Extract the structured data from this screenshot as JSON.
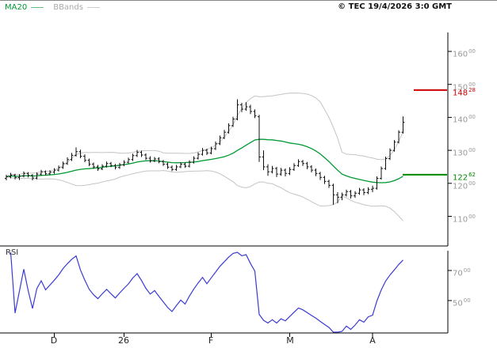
{
  "header": {
    "legend": [
      {
        "label": "MA20",
        "color": "#009933"
      },
      {
        "label": "BBands",
        "color": "#bbbbbb"
      }
    ],
    "copyright": "© TEC 19/4/2026 3:0 GMT"
  },
  "colors": {
    "ma20": "#009933",
    "bbands": "#c4c4c4",
    "candle": "#111111",
    "rsi_line": "#3b3bd1",
    "resistance": "#cc0000",
    "support": "#008800",
    "axis": "#000000",
    "tick_label": "#999999"
  },
  "chart_data": {
    "type": "candlestick",
    "title": "",
    "indicators": [
      "MA20",
      "BBands",
      "RSI"
    ],
    "price_axis": {
      "side": "right",
      "range_visible": [
        101,
        166
      ],
      "ticks": [
        {
          "value": 160,
          "main": "160",
          "sup": "00"
        },
        {
          "value": 150,
          "main": "150",
          "sup": "00"
        },
        {
          "value": 140,
          "main": "140",
          "sup": "00"
        },
        {
          "value": 130,
          "main": "130",
          "sup": "00"
        },
        {
          "value": 120,
          "main": "120",
          "sup": "00"
        },
        {
          "value": 110,
          "main": "110",
          "sup": "00"
        }
      ]
    },
    "levels": [
      {
        "name": "resistance",
        "value": 148.28,
        "main": "148",
        "sup": "28",
        "color": "#cc0000"
      },
      {
        "name": "support",
        "value": 122.62,
        "main": "122",
        "sup": "62",
        "color": "#008800"
      }
    ],
    "x_ticks": [
      {
        "label": "D",
        "index": 11
      },
      {
        "label": "26",
        "index": 27
      },
      {
        "label": "F",
        "index": 47
      },
      {
        "label": "M",
        "index": 65
      },
      {
        "label": "A",
        "index": 84
      }
    ],
    "style": {
      "ma_color": "#009933",
      "bbands_color": "#c4c4c4",
      "candle_color": "#111111",
      "rsi_color": "#3b3bd1"
    },
    "candles": [
      [
        121.5,
        122.6,
        120.9,
        122.0
      ],
      [
        122.0,
        123.2,
        121.5,
        122.5
      ],
      [
        122.5,
        122.9,
        121.2,
        121.8
      ],
      [
        121.8,
        122.8,
        121.0,
        122.2
      ],
      [
        122.2,
        123.6,
        121.8,
        123.0
      ],
      [
        123.0,
        123.4,
        121.8,
        122.4
      ],
      [
        122.4,
        122.8,
        120.9,
        121.6
      ],
      [
        121.6,
        123.3,
        121.2,
        122.8
      ],
      [
        122.8,
        124.1,
        122.3,
        123.5
      ],
      [
        123.5,
        123.9,
        122.4,
        122.9
      ],
      [
        122.9,
        124.0,
        122.5,
        123.4
      ],
      [
        123.4,
        124.6,
        122.9,
        124.0
      ],
      [
        124.0,
        125.4,
        123.6,
        124.8
      ],
      [
        124.8,
        126.6,
        124.4,
        126.0
      ],
      [
        126.0,
        127.9,
        125.6,
        127.2
      ],
      [
        127.2,
        129.2,
        126.8,
        128.5
      ],
      [
        128.5,
        130.9,
        128.1,
        129.6
      ],
      [
        129.6,
        130.2,
        127.6,
        128.2
      ],
      [
        128.2,
        128.8,
        126.4,
        127.0
      ],
      [
        127.0,
        127.5,
        125.2,
        125.8
      ],
      [
        125.8,
        126.3,
        124.4,
        125.0
      ],
      [
        125.0,
        125.6,
        123.8,
        124.4
      ],
      [
        124.4,
        125.8,
        124.0,
        125.2
      ],
      [
        125.2,
        126.6,
        124.8,
        126.0
      ],
      [
        126.0,
        126.5,
        124.9,
        125.4
      ],
      [
        125.4,
        125.9,
        124.2,
        124.8
      ],
      [
        124.8,
        126.2,
        124.4,
        125.6
      ],
      [
        125.6,
        127.0,
        125.2,
        126.4
      ],
      [
        126.4,
        127.8,
        126.0,
        127.2
      ],
      [
        127.2,
        129.0,
        126.8,
        128.4
      ],
      [
        128.4,
        130.1,
        128.0,
        129.4
      ],
      [
        129.4,
        129.9,
        128.0,
        128.6
      ],
      [
        128.6,
        129.1,
        127.1,
        127.6
      ],
      [
        127.6,
        128.2,
        126.3,
        126.8
      ],
      [
        126.8,
        128.0,
        126.4,
        127.4
      ],
      [
        127.4,
        127.9,
        126.1,
        126.6
      ],
      [
        126.6,
        127.1,
        125.3,
        125.8
      ],
      [
        125.8,
        126.3,
        124.4,
        124.9
      ],
      [
        124.9,
        125.4,
        123.7,
        124.2
      ],
      [
        124.2,
        125.6,
        123.8,
        125.0
      ],
      [
        125.0,
        126.4,
        124.6,
        125.8
      ],
      [
        125.8,
        126.3,
        124.7,
        125.2
      ],
      [
        125.2,
        127.0,
        124.8,
        126.4
      ],
      [
        126.4,
        128.2,
        126.0,
        127.6
      ],
      [
        127.6,
        129.4,
        127.2,
        128.8
      ],
      [
        128.8,
        130.7,
        128.4,
        130.0
      ],
      [
        130.0,
        130.5,
        128.6,
        129.2
      ],
      [
        129.2,
        131.1,
        128.8,
        130.5
      ],
      [
        130.5,
        132.7,
        130.1,
        132.0
      ],
      [
        132.0,
        134.5,
        131.6,
        133.8
      ],
      [
        133.8,
        136.2,
        133.4,
        135.5
      ],
      [
        135.5,
        138.2,
        135.1,
        137.5
      ],
      [
        137.5,
        140.2,
        137.1,
        139.5
      ],
      [
        139.5,
        145.5,
        139.1,
        143.8
      ],
      [
        143.8,
        144.4,
        141.6,
        142.5
      ],
      [
        142.5,
        144.6,
        142.0,
        143.2
      ],
      [
        143.2,
        143.8,
        141.0,
        141.8
      ],
      [
        141.8,
        142.4,
        139.8,
        140.5
      ],
      [
        140.2,
        140.8,
        126.5,
        128.0
      ],
      [
        128.0,
        130.0,
        124.0,
        125.0
      ],
      [
        125.0,
        125.8,
        122.3,
        123.5
      ],
      [
        123.5,
        125.3,
        123.0,
        124.5
      ],
      [
        124.5,
        125.0,
        121.9,
        122.8
      ],
      [
        122.8,
        124.7,
        122.3,
        124.0
      ],
      [
        124.0,
        124.5,
        122.1,
        123.0
      ],
      [
        123.0,
        124.9,
        122.5,
        124.2
      ],
      [
        124.2,
        126.1,
        123.8,
        125.4
      ],
      [
        125.4,
        127.3,
        125.0,
        126.6
      ],
      [
        126.6,
        127.1,
        125.3,
        126.0
      ],
      [
        126.0,
        126.5,
        124.3,
        125.0
      ],
      [
        125.0,
        125.5,
        123.3,
        124.0
      ],
      [
        124.0,
        124.5,
        122.2,
        123.0
      ],
      [
        123.0,
        123.5,
        121.0,
        121.8
      ],
      [
        121.8,
        122.3,
        119.8,
        120.6
      ],
      [
        120.6,
        121.1,
        118.6,
        119.4
      ],
      [
        119.4,
        119.9,
        113.5,
        116.5
      ],
      [
        116.5,
        117.3,
        114.0,
        115.8
      ],
      [
        115.8,
        117.2,
        114.9,
        116.5
      ],
      [
        116.5,
        118.1,
        116.0,
        117.5
      ],
      [
        117.5,
        118.0,
        115.4,
        116.2
      ],
      [
        116.2,
        117.6,
        115.6,
        117.0
      ],
      [
        117.0,
        118.6,
        116.5,
        118.0
      ],
      [
        118.0,
        118.5,
        116.4,
        117.2
      ],
      [
        117.2,
        118.8,
        116.7,
        118.2
      ],
      [
        118.2,
        119.3,
        117.3,
        118.5
      ],
      [
        118.5,
        122.1,
        118.1,
        121.5
      ],
      [
        121.5,
        125.1,
        121.1,
        124.5
      ],
      [
        124.5,
        128.1,
        124.1,
        127.5
      ],
      [
        127.5,
        130.6,
        127.1,
        130.0
      ],
      [
        130.0,
        133.1,
        129.6,
        132.5
      ],
      [
        132.5,
        136.1,
        132.1,
        135.5
      ],
      [
        135.5,
        140.3,
        135.1,
        138.5
      ]
    ],
    "rsi": {
      "label": "RSI",
      "period": 14,
      "range_visible": [
        25,
        85
      ],
      "ticks": [
        {
          "value": 70,
          "main": "70",
          "sup": "00"
        },
        {
          "value": 50,
          "main": "50",
          "sup": "00"
        }
      ]
    }
  }
}
